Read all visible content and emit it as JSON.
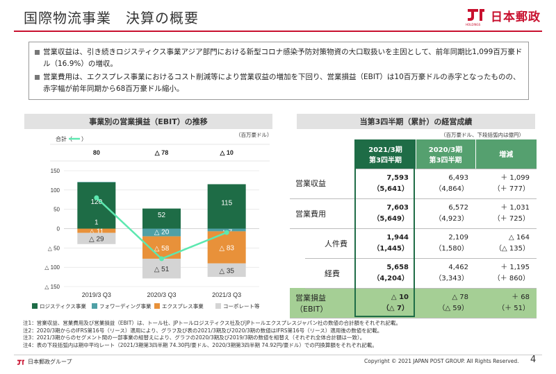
{
  "header": {
    "title": "国際物流事業　決算の概要",
    "brand": "日本郵政",
    "brand_sub": "HOLDINGS"
  },
  "summary": [
    "営業収益は、引き続きロジスティクス事業アジア部門における新型コロナ感染予防対策物資の大口取扱いを主因として、前年同期比1,099百万豪ドル（16.9%）の増収。",
    "営業費用は、エクスプレス事業におけるコスト削減等により営業収益の増加を下回り、営業損益（EBIT）は10百万豪ドルの赤字となったものの、赤字幅が前年同期から68百万豪ドル縮小。"
  ],
  "left_panel": {
    "title": "事業別の営業損益（EBIT）の推移",
    "unit": "（百万豪ドル）",
    "total_label": "合計（",
    "total_label_end": "）"
  },
  "chart_data": {
    "type": "bar",
    "categories": [
      "2019/3 Q3",
      "2020/3 Q3",
      "2021/3 Q3"
    ],
    "series": [
      {
        "name": "ロジスティクス事業",
        "color": "#1e6c46",
        "values": [
          120,
          52,
          115
        ],
        "labels": [
          "120",
          "52",
          "115"
        ]
      },
      {
        "name": "フォワーディング事業",
        "color": "#4fa0a6",
        "values": [
          1,
          -20,
          -7
        ],
        "labels": [
          "1",
          "△ 20",
          "△ 7"
        ]
      },
      {
        "name": "エクスプレス事業",
        "color": "#e8913a",
        "values": [
          -11,
          -58,
          -83
        ],
        "labels": [
          "△ 11",
          "△ 58",
          "△ 83"
        ]
      },
      {
        "name": "コーポレート等",
        "color": "#d4d4d4",
        "values": [
          -29,
          -51,
          -35
        ],
        "labels": [
          "△ 29",
          "△ 51",
          "△ 35"
        ]
      }
    ],
    "totals": [
      80,
      -78,
      -10
    ],
    "total_labels": [
      "80",
      "△ 78",
      "△ 10"
    ],
    "total_color": "#5de8b0",
    "yticks": [
      150,
      100,
      50,
      0,
      -50,
      -100,
      -150
    ],
    "ytick_labels": [
      "150",
      "100",
      "50",
      "0",
      "△ 50",
      "△ 100",
      "△ 150"
    ],
    "ylim": [
      -150,
      150
    ]
  },
  "right_panel": {
    "title": "当第3四半期（累計）の経営成績",
    "unit": "（百万豪ドル、下段括弧内は億円）"
  },
  "table": {
    "headers": [
      "2021/3期\n第3四半期",
      "2020/3期\n第3四半期",
      "増減"
    ],
    "rows": [
      {
        "label": "営業収益",
        "cur": "7,593",
        "cur_b": "（5,641）",
        "prev": "6,493",
        "prev_b": "（4,864）",
        "diff": "＋ 1,099",
        "diff_b": "（＋ 777）",
        "indent": false
      },
      {
        "label": "営業費用",
        "cur": "7,603",
        "cur_b": "（5,649）",
        "prev": "6,572",
        "prev_b": "（4,923）",
        "diff": "＋ 1,031",
        "diff_b": "（＋ 725）",
        "indent": false
      },
      {
        "label": "人件費",
        "cur": "1,944",
        "cur_b": "（1,445）",
        "prev": "2,109",
        "prev_b": "（1,580）",
        "diff": "△ 164",
        "diff_b": "（△ 135）",
        "indent": true
      },
      {
        "label": "経費",
        "cur": "5,658",
        "cur_b": "（4,204）",
        "prev": "4,462",
        "prev_b": "（3,343）",
        "diff": "＋ 1,195",
        "diff_b": "（＋ 860）",
        "indent": true
      },
      {
        "label": "営業損益\n（EBIT）",
        "cur": "△ 10",
        "cur_b": "（△ 7）",
        "prev": "△ 78",
        "prev_b": "（△ 59）",
        "diff": "＋ 68",
        "diff_b": "（＋ 51）",
        "indent": false,
        "ebit": true
      }
    ]
  },
  "notes": [
    "注1：営業収益、営業費用及び営業損益（EBIT）は、トール社、JPトールロジスティクス社及びJPトールエクスプレスジャパン社の数値の合計額をそれぞれ記載。",
    "注2：2020/3期からのIFRS第16号（リース）適用により、グラフ及び表の2021/3期及び2020/3期の数値はIFRS第16号（リース）適用後の数値を記載。",
    "注3：2021/3期からのセグメント間の一部事業の組替えにより、グラフの2020/3期及び2019/3期の数値を組替え（それぞれ全体合計額は一致）。",
    "注4：表の下段括弧内は期中平均レート（2021/3期第3四半期 74.30円/豪ドル、2020/3期第3四半期 74.92円/豪ドル）での円換算額をそれぞれ記載。"
  ],
  "footer": {
    "group": "日本郵政グループ",
    "copyright": "Copyright © 2021 JAPAN POST GROUP. All Rights Reserved.",
    "page": "4"
  }
}
